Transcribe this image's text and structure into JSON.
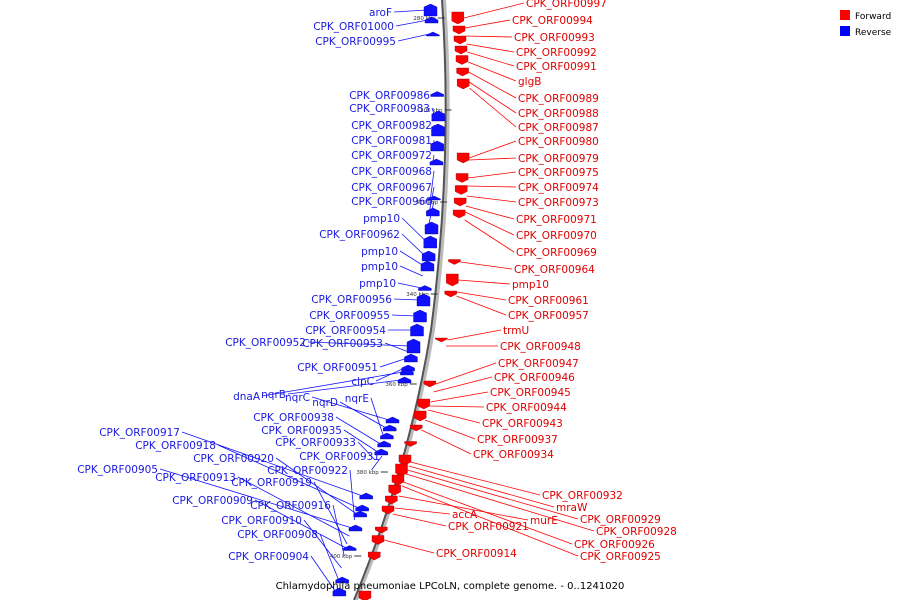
{
  "legend": [
    {
      "label": "Forward",
      "color": "#ff0000"
    },
    {
      "label": "Reverse",
      "color": "#0000ff"
    }
  ],
  "caption": "Chlamydophila pneumoniae LPCoLN, complete genome. - 0..1241020",
  "ticks": [
    "280 kbp",
    "300 kbp",
    "320 kbp",
    "340 kbp",
    "360 kbp",
    "380 kbp",
    "400 kbp"
  ],
  "forward_labels": [
    "CPK_ORF00997",
    "CPK_ORF00994",
    "CPK_ORF00993",
    "CPK_ORF00992",
    "CPK_ORF00991",
    "glgB",
    "CPK_ORF00989",
    "CPK_ORF00988",
    "CPK_ORF00987",
    "CPK_ORF00980",
    "CPK_ORF00979",
    "CPK_ORF00975",
    "CPK_ORF00974",
    "CPK_ORF00973",
    "CPK_ORF00971",
    "CPK_ORF00970",
    "CPK_ORF00969",
    "CPK_ORF00964",
    "pmp10",
    "CPK_ORF00961",
    "CPK_ORF00957",
    "trmU",
    "CPK_ORF00948",
    "CPK_ORF00947",
    "CPK_ORF00946",
    "CPK_ORF00945",
    "CPK_ORF00944",
    "CPK_ORF00943",
    "CPK_ORF00937",
    "CPK_ORF00934",
    "CPK_ORF00932",
    "mraW",
    "CPK_ORF00929",
    "CPK_ORF00928",
    "CPK_ORF00926",
    "CPK_ORF00925",
    "murE",
    "accA",
    "CPK_ORF00921",
    "CPK_ORF00914"
  ],
  "reverse_labels": [
    "aroF",
    "CPK_ORF01000",
    "CPK_ORF00995",
    "CPK_ORF00986",
    "CPK_ORF00983",
    "CPK_ORF00982",
    "CPK_ORF00981",
    "CPK_ORF00972",
    "CPK_ORF00968",
    "CPK_ORF00967",
    "CPK_ORF00966",
    "pmp10",
    "CPK_ORF00962",
    "pmp10",
    "pmp10",
    "pmp10",
    "CPK_ORF00956",
    "CPK_ORF00955",
    "CPK_ORF00954",
    "CPK_ORF00952",
    "CPK_ORF00953",
    "CPK_ORF00951",
    "clpC",
    "dnaA",
    "nqrB",
    "nqrC",
    "nqrD",
    "nqrE",
    "CPK_ORF00938",
    "CPK_ORF00935",
    "CPK_ORF00933",
    "CPK_ORF00931",
    "CPK_ORF00917",
    "CPK_ORF00918",
    "CPK_ORF00920",
    "CPK_ORF00922",
    "CPK_ORF00905",
    "CPK_ORF00913",
    "CPK_ORF00919",
    "CPK_ORF00909",
    "CPK_ORF00916",
    "CPK_ORF00910",
    "CPK_ORF00908",
    "CPK_ORF00904"
  ]
}
